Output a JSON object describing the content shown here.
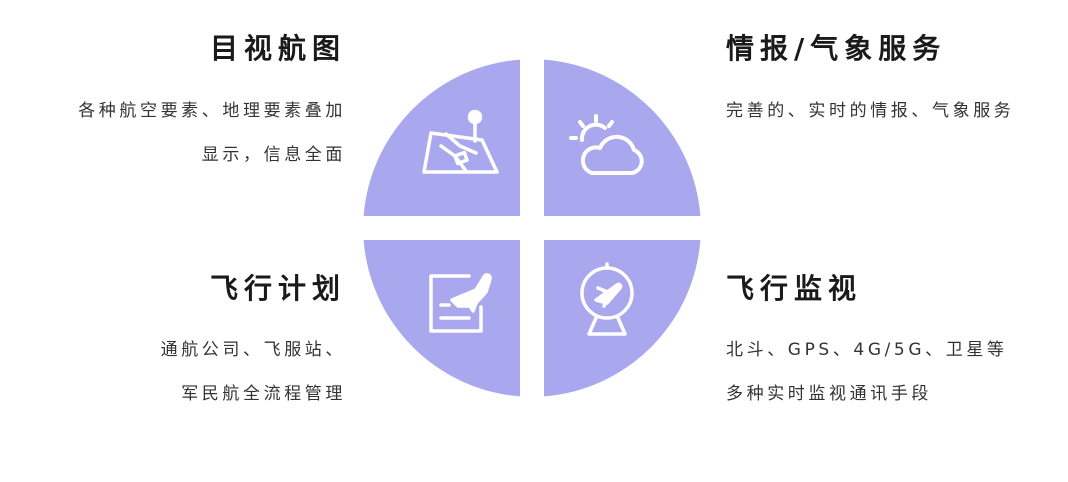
{
  "colors": {
    "quadrant_fill": "#a9a8ee",
    "icon_stroke": "#ffffff",
    "text": "#1a1a1a"
  },
  "quadrants": {
    "top_left": {
      "title": "目视航图",
      "lines": [
        "各种航空要素、地理要素叠加",
        "显示，信息全面"
      ],
      "icon": "map-pin-icon"
    },
    "top_right": {
      "title": "情报/气象服务",
      "lines": [
        "完善的、实时的情报、气象服务"
      ],
      "icon": "sun-cloud-icon"
    },
    "bottom_left": {
      "title": "飞行计划",
      "lines": [
        "通航公司、飞服站、",
        "军民航全流程管理"
      ],
      "icon": "flight-plan-icon"
    },
    "bottom_right": {
      "title": "飞行监视",
      "lines": [
        "北斗、GPS、4G/5G、卫星等",
        "多种实时监视通讯手段"
      ],
      "icon": "radar-plane-icon"
    }
  }
}
